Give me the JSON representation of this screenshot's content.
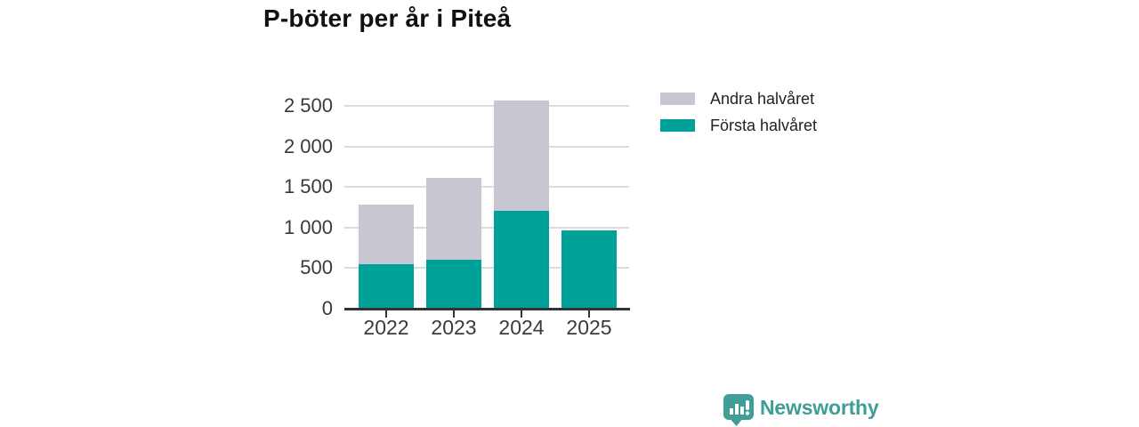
{
  "title": "P-böter per år i Piteå",
  "branding": {
    "wordmark": "Newsworthy",
    "color": "#3f9e97"
  },
  "chart_data": {
    "type": "bar",
    "stacked": true,
    "title": "P-böter per år i Piteå",
    "categories": [
      "2022",
      "2023",
      "2024",
      "2025"
    ],
    "series": [
      {
        "name": "Första halvåret",
        "color": "#00a199",
        "values": [
          535,
          590,
          1200,
          955
        ]
      },
      {
        "name": "Andra halvåret",
        "color": "#c8c6d0",
        "values": [
          740,
          1010,
          1360,
          0
        ]
      }
    ],
    "totals": [
      1275,
      1600,
      2560,
      955
    ],
    "legend_order": [
      "Andra halvåret",
      "Första halvåret"
    ],
    "legend_position": "right-top",
    "xlabel": "",
    "ylabel": "",
    "ylim": [
      0,
      2700
    ],
    "yticks": [
      0,
      500,
      1000,
      1500,
      2000,
      2500
    ],
    "ytick_labels": [
      "0",
      "500",
      "1 000",
      "1 500",
      "2 000",
      "2 500"
    ],
    "grid": true,
    "axis_color": "#333333",
    "gridline_color": "#dcdcdc"
  }
}
